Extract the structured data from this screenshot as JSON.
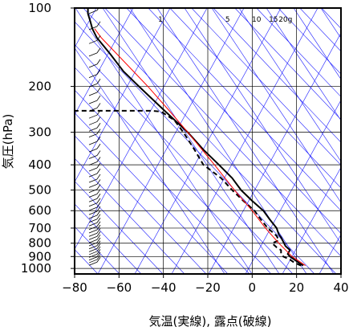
{
  "chart_data": {
    "type": "line",
    "title": "",
    "xlabel": "気温(実線), 露点(破線)",
    "ylabel": "気圧(hPa)",
    "xlim": [
      -80,
      40
    ],
    "ylim_hpa": [
      1050,
      100
    ],
    "y_scale": "log",
    "x_ticks": [
      -80,
      -60,
      -40,
      -20,
      0,
      20,
      40
    ],
    "y_ticks": [
      100,
      200,
      300,
      400,
      500,
      600,
      700,
      800,
      900,
      1000
    ],
    "x_tick_labels": [
      "−80",
      "−60",
      "−40",
      "−20",
      "0",
      "20",
      "40"
    ],
    "y_tick_labels": [
      "100",
      "200",
      "300",
      "400",
      "500",
      "600",
      "700",
      "800",
      "900",
      "1000"
    ],
    "grid": true,
    "mixing_ratio_labels": [
      "1",
      "5",
      "10",
      "15",
      "20g"
    ],
    "mixing_ratio_values": [
      1,
      5,
      10,
      15,
      20
    ],
    "background_line_color": "#1a1aff",
    "parcel_line_color": "#ff0000",
    "series": [
      {
        "style": "solid",
        "color": "#000000",
        "points": [
          [
            975,
            23
          ],
          [
            950,
            21
          ],
          [
            925,
            19
          ],
          [
            900,
            17
          ],
          [
            880,
            16
          ],
          [
            850,
            17
          ],
          [
            820,
            15
          ],
          [
            790,
            14
          ],
          [
            760,
            13
          ],
          [
            740,
            12
          ],
          [
            700,
            11
          ],
          [
            650,
            8
          ],
          [
            600,
            5
          ],
          [
            550,
            0
          ],
          [
            500,
            -5
          ],
          [
            450,
            -9
          ],
          [
            400,
            -15
          ],
          [
            350,
            -22
          ],
          [
            300,
            -29
          ],
          [
            250,
            -39
          ],
          [
            200,
            -51
          ],
          [
            175,
            -58
          ],
          [
            150,
            -64
          ],
          [
            130,
            -70
          ],
          [
            120,
            -72
          ],
          [
            112,
            -73
          ],
          [
            105,
            -74
          ],
          [
            100,
            -74
          ]
        ]
      },
      {
        "style": "dashed",
        "color": "#000000",
        "points": [
          [
            975,
            22
          ],
          [
            950,
            19
          ],
          [
            925,
            17
          ],
          [
            900,
            14
          ],
          [
            880,
            13
          ],
          [
            850,
            13
          ],
          [
            830,
            11
          ],
          [
            800,
            9
          ],
          [
            780,
            12
          ],
          [
            750,
            11
          ],
          [
            700,
            7
          ],
          [
            650,
            4
          ],
          [
            600,
            1
          ],
          [
            550,
            -4
          ],
          [
            500,
            -9
          ],
          [
            450,
            -14
          ],
          [
            400,
            -22
          ],
          [
            350,
            -26
          ],
          [
            300,
            -31
          ],
          [
            270,
            -35
          ],
          [
            250,
            -41
          ],
          [
            248,
            -45
          ],
          [
            248,
            -80
          ]
        ]
      },
      {
        "style": "parcel",
        "color": "#ff0000",
        "points": [
          [
            975,
            24
          ],
          [
            900,
            18
          ],
          [
            800,
            12
          ],
          [
            700,
            6
          ],
          [
            600,
            0
          ],
          [
            500,
            -8
          ],
          [
            400,
            -17
          ],
          [
            300,
            -29
          ],
          [
            250,
            -37
          ],
          [
            200,
            -47
          ],
          [
            150,
            -61
          ],
          [
            130,
            -68
          ],
          [
            120,
            -71
          ]
        ]
      }
    ]
  }
}
